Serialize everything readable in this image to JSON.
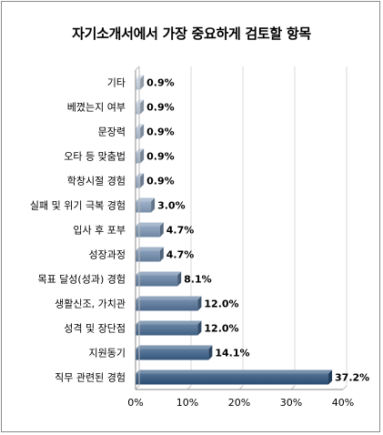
{
  "chart_data": {
    "type": "bar",
    "orientation": "horizontal",
    "title": "자기소개서에서 가장 중요하게 검토할 항목",
    "categories": [
      "기타",
      "베꼈는지 여부",
      "문장력",
      "오타 등 맞춤법",
      "학창시절 경험",
      "실패 및 위기 극복 경험",
      "입사 후 포부",
      "성장과정",
      "목표 달성(성과) 경험",
      "생활신조, 가치관",
      "성격 및 장단점",
      "지원동기",
      "직무 관련된 경험"
    ],
    "values": [
      0.9,
      0.9,
      0.9,
      0.9,
      0.9,
      3.0,
      4.7,
      4.7,
      8.1,
      12.0,
      12.0,
      14.1,
      37.2
    ],
    "value_labels": [
      "0.9%",
      "0.9%",
      "0.9%",
      "0.9%",
      "0.9%",
      "3.0%",
      "4.7%",
      "4.7%",
      "8.1%",
      "12.0%",
      "12.0%",
      "14.1%",
      "37.2%"
    ],
    "xlim": [
      0,
      40
    ],
    "x_ticks": [
      "0%",
      "10%",
      "20%",
      "30%",
      "40%"
    ],
    "grid": true,
    "legend": false,
    "color_light": "#c9d7ea",
    "color_dark": "#2d537e"
  }
}
